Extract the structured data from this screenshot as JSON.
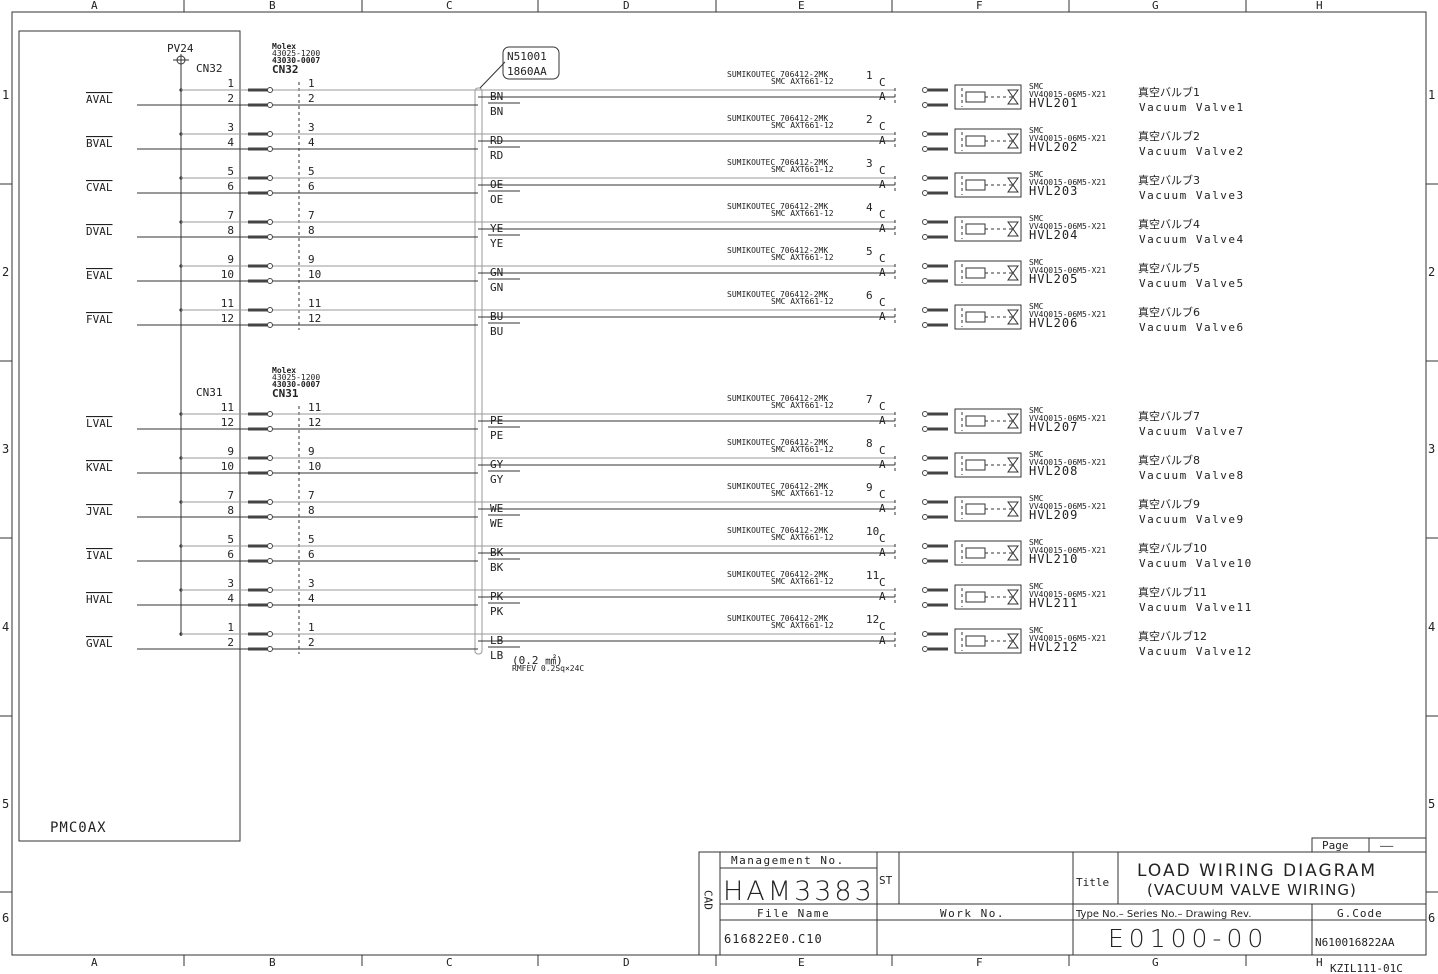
{
  "frame": {
    "columns": [
      "A",
      "B",
      "C",
      "D",
      "E",
      "F",
      "G",
      "H"
    ],
    "rows": [
      "1",
      "2",
      "3",
      "4",
      "5",
      "6"
    ]
  },
  "unit": {
    "name": "PMC0AX",
    "power": "PV24"
  },
  "connector_maker": "Molex",
  "connector_parts": [
    "43025-1200",
    "43030-0007"
  ],
  "cable": {
    "id_line1": "N51001",
    "id_line2": "1860AA",
    "size": "(0.2 ㎟)",
    "spec": "RMFEV 0.2Sq×24C"
  },
  "relay": {
    "line1": "SUMIKOUTEC 706412-2MK",
    "line2": "SMC AXT661-12",
    "pin_c": "C",
    "pin_a": "A"
  },
  "valve": {
    "maker": "SMC",
    "model": "VV4Q015-06M5-X21"
  },
  "groups": [
    {
      "connector": "CN32",
      "rows": [
        {
          "pins": [
            "1",
            "2"
          ],
          "signal": "AVAL",
          "wire": "BN",
          "no": "1",
          "tag": "HVL201",
          "jp": "真空バルブ1",
          "en": "Vacuum Valve1"
        },
        {
          "pins": [
            "3",
            "4"
          ],
          "signal": "BVAL",
          "wire": "RD",
          "no": "2",
          "tag": "HVL202",
          "jp": "真空バルブ2",
          "en": "Vacuum Valve2"
        },
        {
          "pins": [
            "5",
            "6"
          ],
          "signal": "CVAL",
          "wire": "OE",
          "no": "3",
          "tag": "HVL203",
          "jp": "真空バルブ3",
          "en": "Vacuum Valve3"
        },
        {
          "pins": [
            "7",
            "8"
          ],
          "signal": "DVAL",
          "wire": "YE",
          "no": "4",
          "tag": "HVL204",
          "jp": "真空バルブ4",
          "en": "Vacuum Valve4"
        },
        {
          "pins": [
            "9",
            "10"
          ],
          "signal": "EVAL",
          "wire": "GN",
          "no": "5",
          "tag": "HVL205",
          "jp": "真空バルブ5",
          "en": "Vacuum Valve5"
        },
        {
          "pins": [
            "11",
            "12"
          ],
          "signal": "FVAL",
          "wire": "BU",
          "no": "6",
          "tag": "HVL206",
          "jp": "真空バルブ6",
          "en": "Vacuum Valve6"
        }
      ]
    },
    {
      "connector": "CN31",
      "rows": [
        {
          "pins": [
            "11",
            "12"
          ],
          "signal": "LVAL",
          "wire": "PE",
          "no": "7",
          "tag": "HVL207",
          "jp": "真空バルブ7",
          "en": "Vacuum Valve7"
        },
        {
          "pins": [
            "9",
            "10"
          ],
          "signal": "KVAL",
          "wire": "GY",
          "no": "8",
          "tag": "HVL208",
          "jp": "真空バルブ8",
          "en": "Vacuum Valve8"
        },
        {
          "pins": [
            "7",
            "8"
          ],
          "signal": "JVAL",
          "wire": "WE",
          "no": "9",
          "tag": "HVL209",
          "jp": "真空バルブ9",
          "en": "Vacuum Valve9"
        },
        {
          "pins": [
            "5",
            "6"
          ],
          "signal": "IVAL",
          "wire": "BK",
          "no": "10",
          "tag": "HVL210",
          "jp": "真空バルブ10",
          "en": "Vacuum Valve10"
        },
        {
          "pins": [
            "3",
            "4"
          ],
          "signal": "HVAL",
          "wire": "PK",
          "no": "11",
          "tag": "HVL211",
          "jp": "真空バルブ11",
          "en": "Vacuum Valve11"
        },
        {
          "pins": [
            "1",
            "2"
          ],
          "signal": "GVAL",
          "wire": "LB",
          "no": "12",
          "tag": "HVL212",
          "jp": "真空バルブ12",
          "en": "Vacuum Valve12"
        }
      ]
    }
  ],
  "title_block": {
    "page_label": "Page",
    "page_value": "——",
    "cad_label": "CAD",
    "management_label": "Management No.",
    "management_no": "HAM3383",
    "st_label": "ST",
    "title_label": "Title",
    "title_line1": "LOAD WIRING DIAGRAM",
    "title_line2": "(VACUUM VALVE WIRING)",
    "file_label": "File Name",
    "file_name": "616822E0.C10",
    "work_label": "Work No.",
    "type_label": "Type No.– Series No.– Drawing Rev.",
    "drawing_no": "E0100-00",
    "gcode_label": "G.Code",
    "gcode": "N610016822AA",
    "form_code": "KZIL111-01C"
  }
}
